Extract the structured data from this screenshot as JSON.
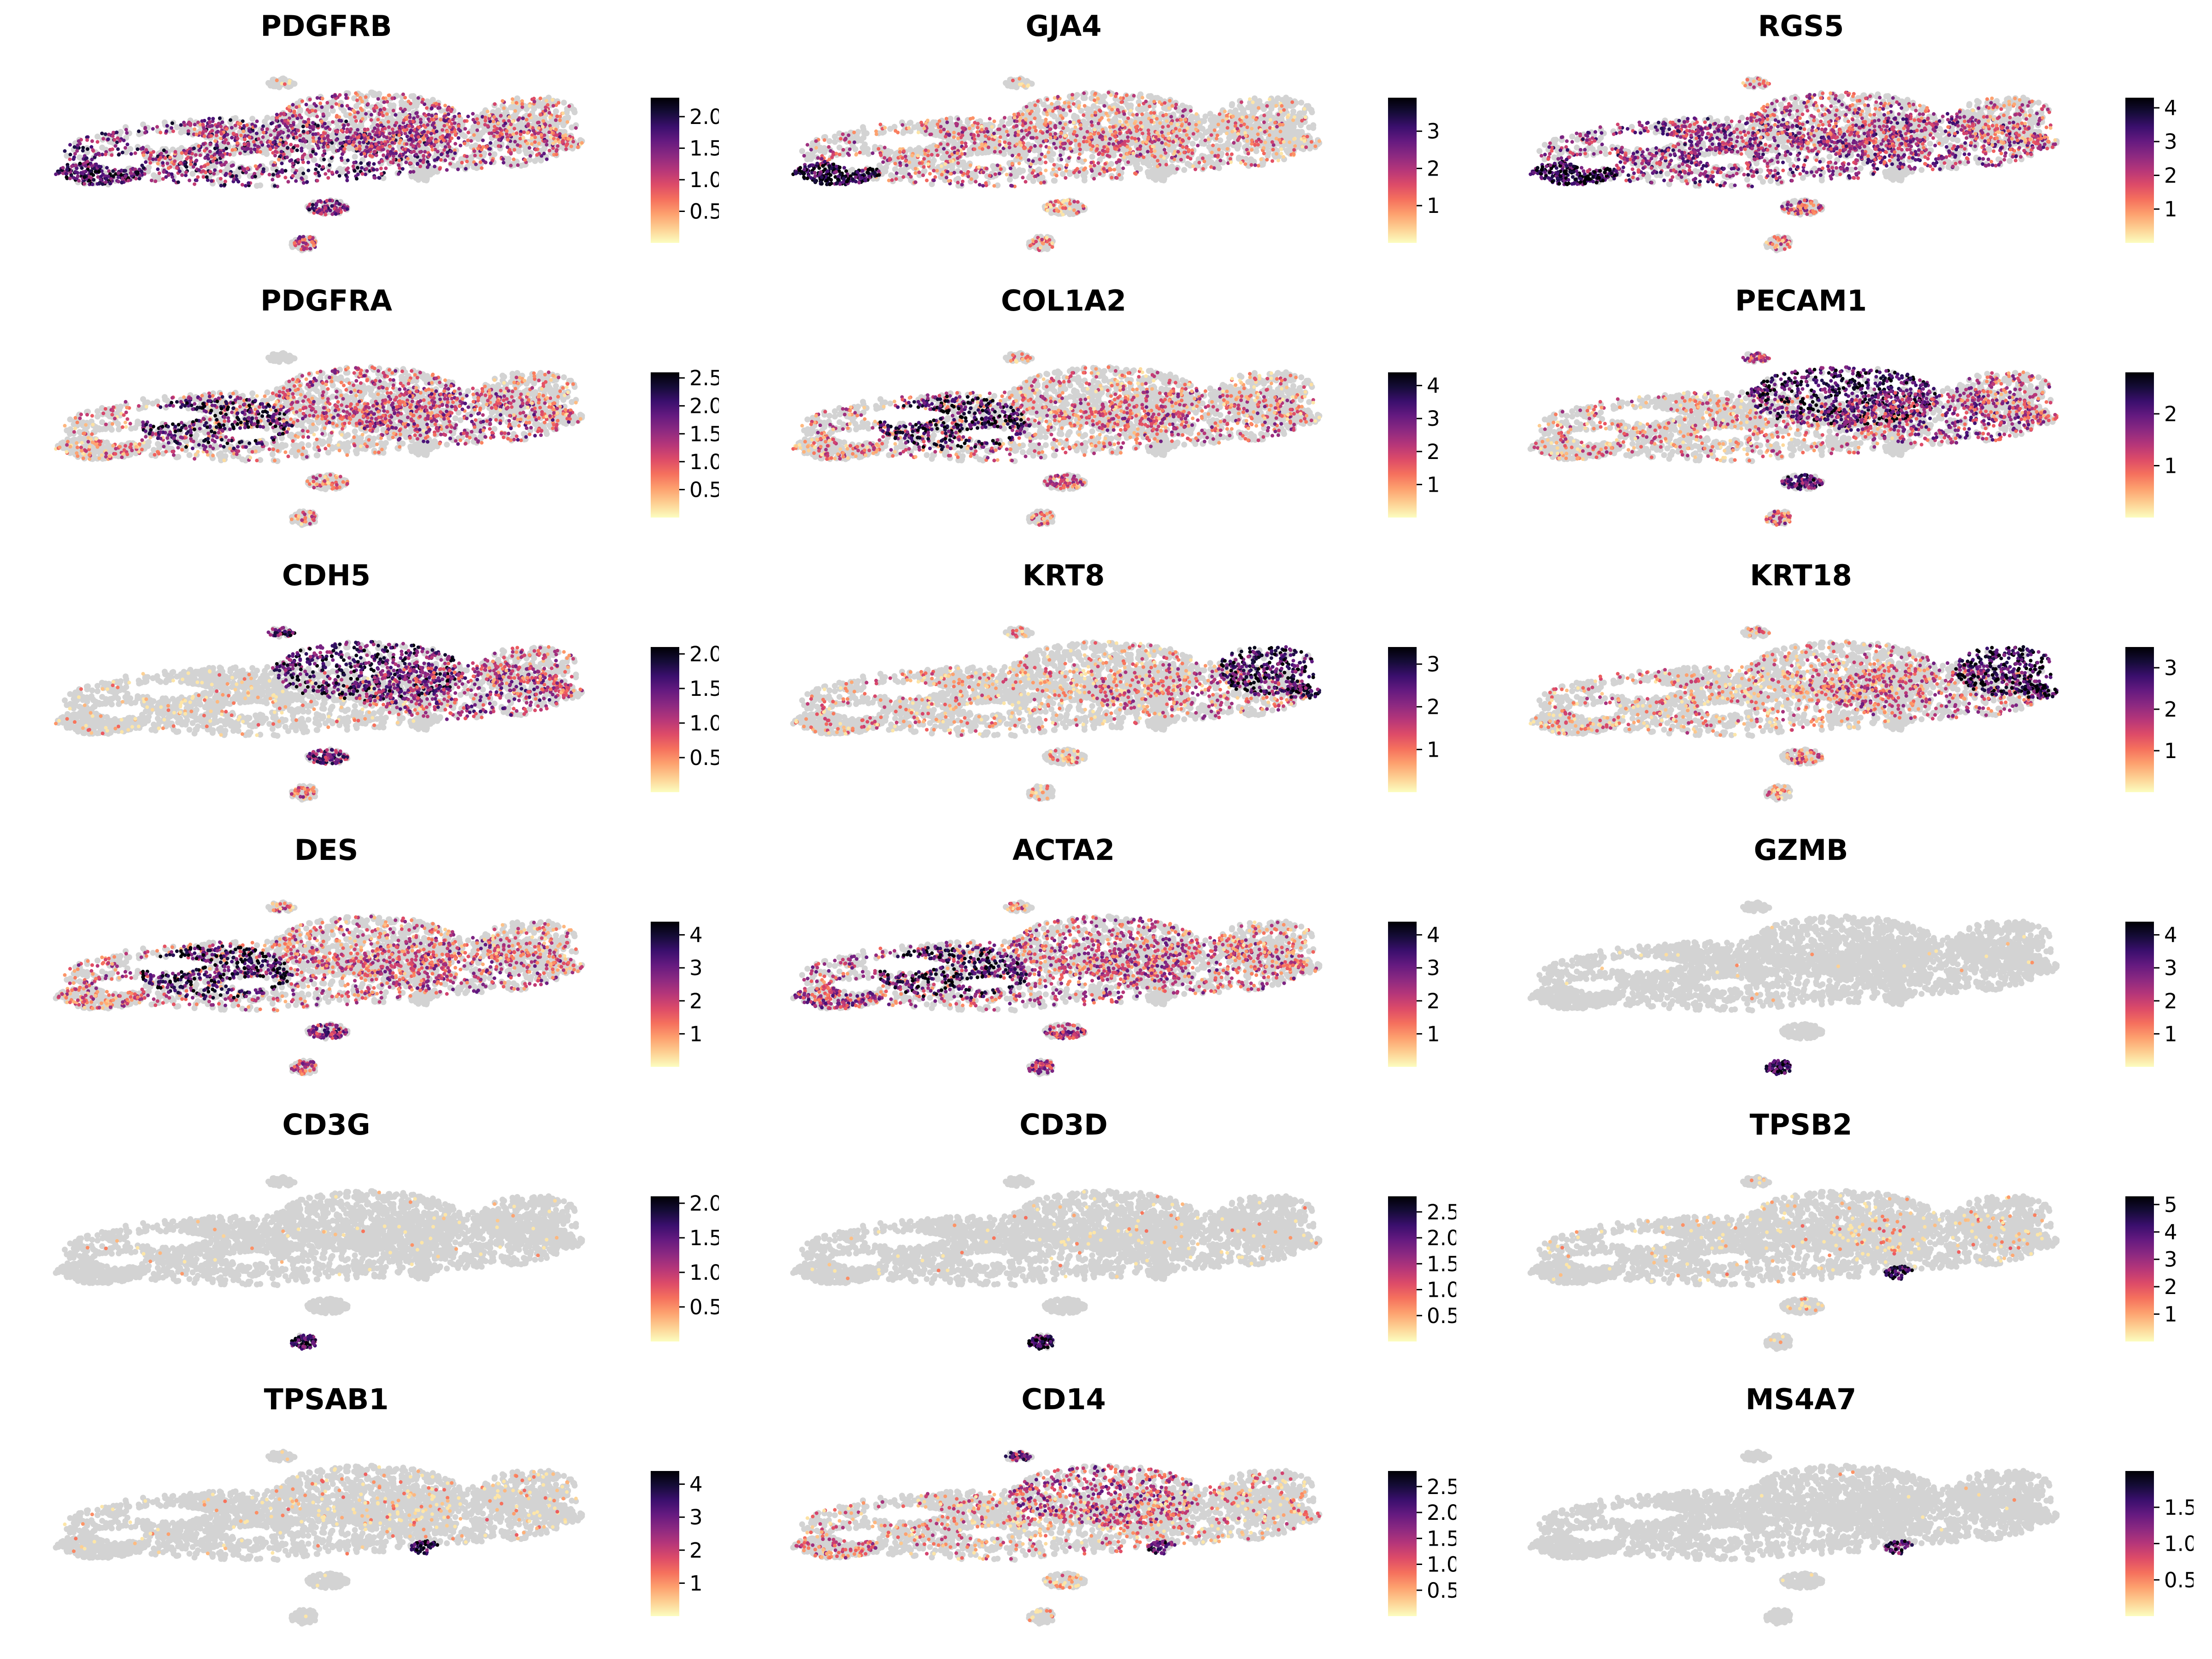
{
  "figure": {
    "colors": {
      "background": "#ffffff",
      "no_expression": "#d3d3d3",
      "palette": "magma (reversed)",
      "colorbar_low": "#fcfdbf",
      "colorbar_high": "#000004"
    }
  },
  "chart_data": [
    {
      "type": "scatter",
      "gene": "PDGFRB",
      "title": "PDGFRB",
      "colorbar": {
        "min": 0.0,
        "max": 2.3,
        "ticks": [
          "0.5",
          "1.0",
          "1.5",
          "2.0"
        ],
        "tick_values": [
          0.5,
          1.0,
          1.5,
          2.0
        ]
      },
      "expression_regions": {
        "left_mass": 0.75,
        "left_lobe_tip": 0.85,
        "left_core": 0.5,
        "right_mass_upper": 0.5,
        "right_mass_mid": 0.55,
        "right_tail": 0.35,
        "small_island": 0.7,
        "bottom_island": 0.5,
        "top_fragment": 0.1
      }
    },
    {
      "type": "scatter",
      "gene": "GJA4",
      "title": "GJA4",
      "colorbar": {
        "min": 0.0,
        "max": 3.9,
        "ticks": [
          "1",
          "2",
          "3"
        ],
        "tick_values": [
          1,
          2,
          3
        ]
      },
      "expression_regions": {
        "left_mass": 0.45,
        "left_lobe_tip": 0.95,
        "left_core": 0.3,
        "right_mass_upper": 0.35,
        "right_mass_mid": 0.35,
        "right_tail": 0.2,
        "small_island": 0.3,
        "bottom_island": 0.3,
        "top_fragment": 0.15
      }
    },
    {
      "type": "scatter",
      "gene": "RGS5",
      "title": "RGS5",
      "colorbar": {
        "min": 0.0,
        "max": 4.3,
        "ticks": [
          "1",
          "2",
          "3",
          "4"
        ],
        "tick_values": [
          1,
          2,
          3,
          4
        ]
      },
      "expression_regions": {
        "left_mass": 0.65,
        "left_lobe_tip": 0.95,
        "left_core": 0.65,
        "right_mass_upper": 0.5,
        "right_mass_mid": 0.6,
        "right_tail": 0.4,
        "small_island": 0.5,
        "bottom_island": 0.35,
        "top_fragment": 0.3
      }
    },
    {
      "type": "scatter",
      "gene": "PDGFRA",
      "title": "PDGFRA",
      "colorbar": {
        "min": 0.0,
        "max": 2.6,
        "ticks": [
          "0.5",
          "1.0",
          "1.5",
          "2.0",
          "2.5"
        ],
        "tick_values": [
          0.5,
          1.0,
          1.5,
          2.0,
          2.5
        ]
      },
      "expression_regions": {
        "left_mass": 0.35,
        "left_lobe_tip": 0.3,
        "left_core": 0.9,
        "right_mass_upper": 0.5,
        "right_mass_mid": 0.55,
        "right_tail": 0.3,
        "small_island": 0.35,
        "bottom_island": 0.3,
        "top_fragment": 0.0
      }
    },
    {
      "type": "scatter",
      "gene": "COL1A2",
      "title": "COL1A2",
      "colorbar": {
        "min": 0.0,
        "max": 4.4,
        "ticks": [
          "1",
          "2",
          "3",
          "4"
        ],
        "tick_values": [
          1,
          2,
          3,
          4
        ]
      },
      "expression_regions": {
        "left_mass": 0.4,
        "left_lobe_tip": 0.35,
        "left_core": 0.95,
        "right_mass_upper": 0.3,
        "right_mass_mid": 0.45,
        "right_tail": 0.25,
        "small_island": 0.4,
        "bottom_island": 0.35,
        "top_fragment": 0.3
      }
    },
    {
      "type": "scatter",
      "gene": "PECAM1",
      "title": "PECAM1",
      "colorbar": {
        "min": 0.0,
        "max": 2.8,
        "ticks": [
          "1",
          "2"
        ],
        "tick_values": [
          1,
          2
        ]
      },
      "expression_regions": {
        "left_mass": 0.35,
        "left_lobe_tip": 0.3,
        "left_core": 0.3,
        "right_mass_upper": 0.9,
        "right_mass_mid": 0.6,
        "right_tail": 0.45,
        "small_island": 0.8,
        "bottom_island": 0.45,
        "top_fragment": 0.5
      }
    },
    {
      "type": "scatter",
      "gene": "CDH5",
      "title": "CDH5",
      "colorbar": {
        "min": 0.0,
        "max": 2.1,
        "ticks": [
          "0.5",
          "1.0",
          "1.5",
          "2.0"
        ],
        "tick_values": [
          0.5,
          1.0,
          1.5,
          2.0
        ]
      },
      "expression_regions": {
        "left_mass": 0.12,
        "left_lobe_tip": 0.1,
        "left_core": 0.1,
        "right_mass_upper": 0.85,
        "right_mass_mid": 0.6,
        "right_tail": 0.45,
        "small_island": 0.7,
        "bottom_island": 0.4,
        "top_fragment": 0.8
      }
    },
    {
      "type": "scatter",
      "gene": "KRT8",
      "title": "KRT8",
      "colorbar": {
        "min": 0.0,
        "max": 3.4,
        "ticks": [
          "1",
          "2",
          "3"
        ],
        "tick_values": [
          1,
          2,
          3
        ]
      },
      "expression_regions": {
        "left_mass": 0.25,
        "left_lobe_tip": 0.2,
        "left_core": 0.2,
        "right_mass_upper": 0.25,
        "right_mass_mid": 0.4,
        "right_tail": 0.9,
        "small_island": 0.2,
        "bottom_island": 0.15,
        "top_fragment": 0.2
      }
    },
    {
      "type": "scatter",
      "gene": "KRT18",
      "title": "KRT18",
      "colorbar": {
        "min": 0.0,
        "max": 3.5,
        "ticks": [
          "1",
          "2",
          "3"
        ],
        "tick_values": [
          1,
          2,
          3
        ]
      },
      "expression_regions": {
        "left_mass": 0.3,
        "left_lobe_tip": 0.25,
        "left_core": 0.25,
        "right_mass_upper": 0.35,
        "right_mass_mid": 0.45,
        "right_tail": 0.95,
        "small_island": 0.35,
        "bottom_island": 0.25,
        "top_fragment": 0.4
      }
    },
    {
      "type": "scatter",
      "gene": "DES",
      "title": "DES",
      "colorbar": {
        "min": 0.0,
        "max": 4.4,
        "ticks": [
          "1",
          "2",
          "3",
          "4"
        ],
        "tick_values": [
          1,
          2,
          3,
          4
        ]
      },
      "expression_regions": {
        "left_mass": 0.45,
        "left_lobe_tip": 0.4,
        "left_core": 0.95,
        "right_mass_upper": 0.4,
        "right_mass_mid": 0.5,
        "right_tail": 0.35,
        "small_island": 0.65,
        "bottom_island": 0.5,
        "top_fragment": 0.35
      }
    },
    {
      "type": "scatter",
      "gene": "ACTA2",
      "title": "ACTA2",
      "colorbar": {
        "min": 0.0,
        "max": 4.4,
        "ticks": [
          "1",
          "2",
          "3",
          "4"
        ],
        "tick_values": [
          1,
          2,
          3,
          4
        ]
      },
      "expression_regions": {
        "left_mass": 0.5,
        "left_lobe_tip": 0.6,
        "left_core": 0.9,
        "right_mass_upper": 0.45,
        "right_mass_mid": 0.5,
        "right_tail": 0.35,
        "small_island": 0.6,
        "bottom_island": 0.55,
        "top_fragment": 0.35
      }
    },
    {
      "type": "scatter",
      "gene": "GZMB",
      "title": "GZMB",
      "colorbar": {
        "min": 0.0,
        "max": 4.4,
        "ticks": [
          "1",
          "2",
          "3",
          "4"
        ],
        "tick_values": [
          1,
          2,
          3,
          4
        ]
      },
      "expression_regions": {
        "left_mass": 0.01,
        "left_lobe_tip": 0.0,
        "left_core": 0.01,
        "right_mass_upper": 0.01,
        "right_mass_mid": 0.02,
        "right_tail": 0.01,
        "small_island": 0.0,
        "bottom_island": 0.95,
        "top_fragment": 0.0
      }
    },
    {
      "type": "scatter",
      "gene": "CD3G",
      "title": "CD3G",
      "colorbar": {
        "min": 0.0,
        "max": 2.1,
        "ticks": [
          "0.5",
          "1.0",
          "1.5",
          "2.0"
        ],
        "tick_values": [
          0.5,
          1.0,
          1.5,
          2.0
        ]
      },
      "expression_regions": {
        "left_mass": 0.01,
        "left_lobe_tip": 0.0,
        "left_core": 0.01,
        "right_mass_upper": 0.02,
        "right_mass_mid": 0.03,
        "right_tail": 0.02,
        "small_island": 0.0,
        "bottom_island": 0.9,
        "top_fragment": 0.0
      }
    },
    {
      "type": "scatter",
      "gene": "CD3D",
      "title": "CD3D",
      "colorbar": {
        "min": 0.0,
        "max": 2.8,
        "ticks": [
          "0.5",
          "1.0",
          "1.5",
          "2.0",
          "2.5"
        ],
        "tick_values": [
          0.5,
          1.0,
          1.5,
          2.0,
          2.5
        ]
      },
      "expression_regions": {
        "left_mass": 0.02,
        "left_lobe_tip": 0.01,
        "left_core": 0.02,
        "right_mass_upper": 0.03,
        "right_mass_mid": 0.05,
        "right_tail": 0.03,
        "small_island": 0.0,
        "bottom_island": 0.95,
        "top_fragment": 0.0
      }
    },
    {
      "type": "scatter",
      "gene": "TPSB2",
      "title": "TPSB2",
      "colorbar": {
        "min": 0.0,
        "max": 5.3,
        "ticks": [
          "1",
          "2",
          "3",
          "4",
          "5"
        ],
        "tick_values": [
          1,
          2,
          3,
          4,
          5
        ]
      },
      "expression_regions": {
        "left_mass": 0.05,
        "left_lobe_tip": 0.03,
        "left_core": 0.05,
        "right_mass_upper": 0.08,
        "right_mass_mid": 0.12,
        "right_tail": 0.08,
        "small_island": 0.1,
        "bottom_island": 0.05,
        "top_fragment": 0.05,
        "lower_protrusion": 0.95
      }
    },
    {
      "type": "scatter",
      "gene": "TPSAB1",
      "title": "TPSAB1",
      "colorbar": {
        "min": 0.0,
        "max": 4.4,
        "ticks": [
          "1",
          "2",
          "3",
          "4"
        ],
        "tick_values": [
          1,
          2,
          3,
          4
        ]
      },
      "expression_regions": {
        "left_mass": 0.04,
        "left_lobe_tip": 0.02,
        "left_core": 0.04,
        "right_mass_upper": 0.08,
        "right_mass_mid": 0.12,
        "right_tail": 0.08,
        "small_island": 0.08,
        "bottom_island": 0.03,
        "top_fragment": 0.03,
        "lower_protrusion": 0.95
      }
    },
    {
      "type": "scatter",
      "gene": "CD14",
      "title": "CD14",
      "colorbar": {
        "min": 0.0,
        "max": 2.8,
        "ticks": [
          "0.5",
          "1.0",
          "1.5",
          "2.0",
          "2.5"
        ],
        "tick_values": [
          0.5,
          1.0,
          1.5,
          2.0,
          2.5
        ]
      },
      "expression_regions": {
        "left_mass": 0.3,
        "left_lobe_tip": 0.4,
        "left_core": 0.25,
        "right_mass_upper": 0.55,
        "right_mass_mid": 0.25,
        "right_tail": 0.2,
        "small_island": 0.2,
        "bottom_island": 0.1,
        "top_fragment": 0.7,
        "lower_protrusion": 0.85
      }
    },
    {
      "type": "scatter",
      "gene": "MS4A7",
      "title": "MS4A7",
      "colorbar": {
        "min": 0.0,
        "max": 2.0,
        "ticks": [
          "0.5",
          "1.0",
          "1.5"
        ],
        "tick_values": [
          0.5,
          1.0,
          1.5
        ]
      },
      "expression_regions": {
        "left_mass": 0.0,
        "left_lobe_tip": 0.0,
        "left_core": 0.0,
        "right_mass_upper": 0.01,
        "right_mass_mid": 0.01,
        "right_tail": 0.0,
        "small_island": 0.02,
        "bottom_island": 0.0,
        "top_fragment": 0.0,
        "lower_protrusion": 0.85
      }
    }
  ]
}
